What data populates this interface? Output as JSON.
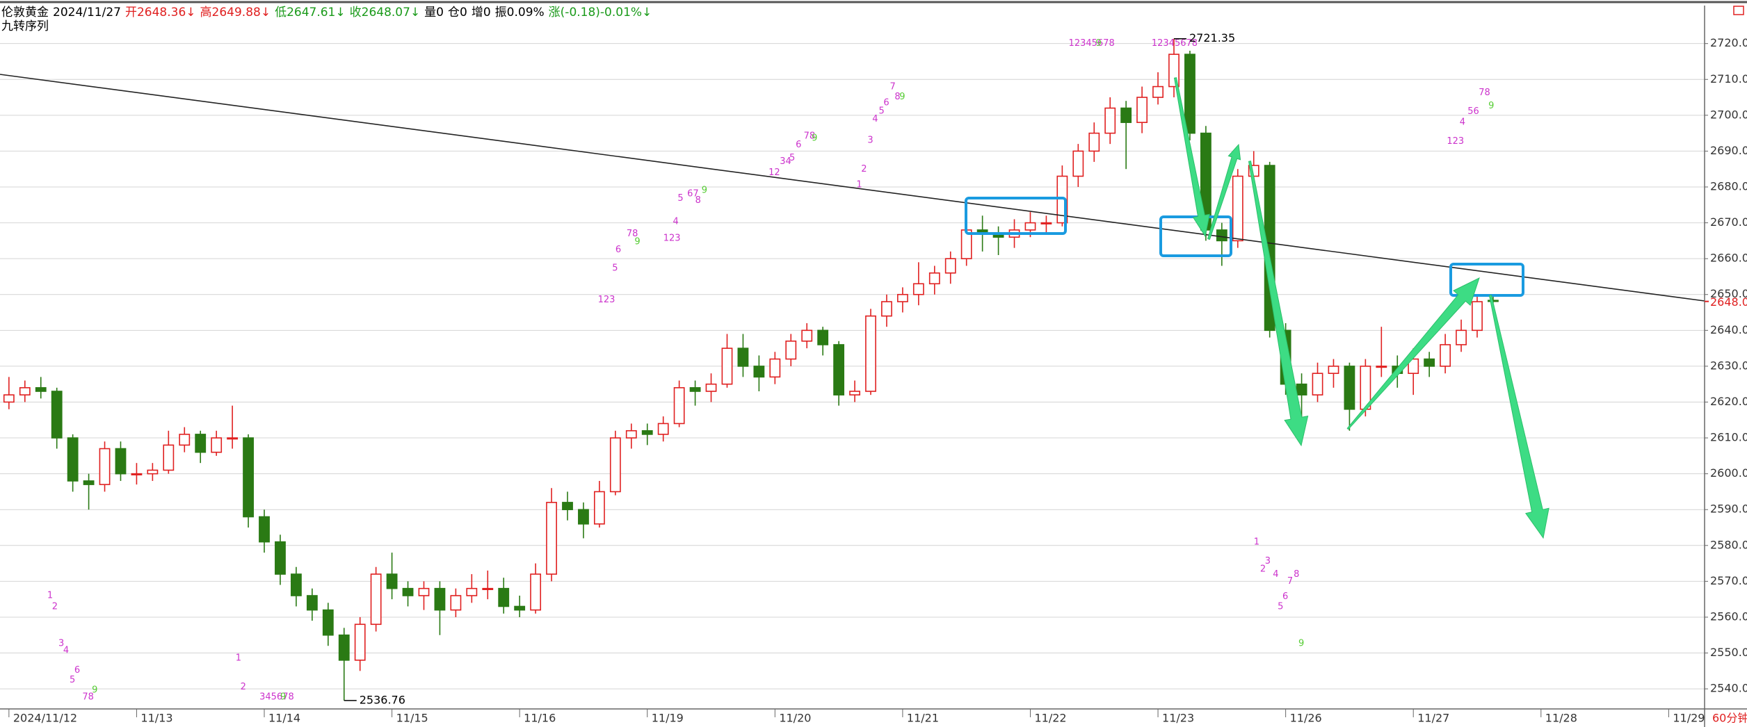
{
  "chart_data": {
    "type": "candlestick",
    "header": [
      "伦敦黄金",
      "2024/11/27",
      "开2648.36↓",
      "高2649.88↓",
      "低2647.61↓",
      "收2648.07↓",
      "量0",
      "仓0",
      "增0",
      "振0.09%",
      "涨(-0.18)-0.01%↓"
    ],
    "header_colors": [
      "#000000",
      "#000000",
      "#e02020",
      "#e02020",
      "#1a9a1a",
      "#1a9a1a",
      "#000000",
      "#000000",
      "#000000",
      "#000000",
      "#1a9a1a"
    ],
    "indicator": "九转序列",
    "period": "60分钟",
    "up_color": "#e02020",
    "down_color": "#2a7a14",
    "grid": true,
    "xlim": [
      -0.56,
      106.25
    ],
    "xticks": [
      {
        "value": 0,
        "label": "2024/11/12"
      },
      {
        "value": 8,
        "label": "11/13"
      },
      {
        "value": 16,
        "label": "11/14"
      },
      {
        "value": 24,
        "label": "11/15"
      },
      {
        "value": 32,
        "label": "11/16"
      },
      {
        "value": 40,
        "label": "11/19"
      },
      {
        "value": 48,
        "label": "11/20"
      },
      {
        "value": 56,
        "label": "11/21"
      },
      {
        "value": 64,
        "label": "11/22"
      },
      {
        "value": 72,
        "label": "11/23"
      },
      {
        "value": 80,
        "label": "11/26"
      },
      {
        "value": 88,
        "label": "11/27"
      },
      {
        "value": 96,
        "label": "11/28"
      },
      {
        "value": 104,
        "label": "11/29"
      }
    ],
    "ylim": [
      2534.4,
      2730.6
    ],
    "yticks": [
      {
        "value": 2540,
        "label": "2540.00"
      },
      {
        "value": 2550,
        "label": "2550.00"
      },
      {
        "value": 2560,
        "label": "2560.00"
      },
      {
        "value": 2570,
        "label": "2570.00"
      },
      {
        "value": 2580,
        "label": "2580.00"
      },
      {
        "value": 2590,
        "label": "2590.00"
      },
      {
        "value": 2600,
        "label": "2600.00"
      },
      {
        "value": 2610,
        "label": "2610.00"
      },
      {
        "value": 2620,
        "label": "2620.00"
      },
      {
        "value": 2630,
        "label": "2630.00"
      },
      {
        "value": 2640,
        "label": "2640.00"
      },
      {
        "value": 2650,
        "label": "2650.00"
      },
      {
        "value": 2660,
        "label": "2660.00"
      },
      {
        "value": 2670,
        "label": "2670.00"
      },
      {
        "value": 2680,
        "label": "2680.00"
      },
      {
        "value": 2690,
        "label": "2690.00"
      },
      {
        "value": 2700,
        "label": "2700.00"
      },
      {
        "value": 2710,
        "label": "2710.00"
      },
      {
        "value": 2720,
        "label": "2720.00"
      }
    ],
    "ohlc": [
      [
        2620,
        2627,
        2618,
        2622
      ],
      [
        2622,
        2626,
        2620,
        2624
      ],
      [
        2624,
        2627,
        2621,
        2623
      ],
      [
        2623,
        2624,
        2607,
        2610
      ],
      [
        2610,
        2611,
        2595,
        2598
      ],
      [
        2598,
        2600,
        2590,
        2597
      ],
      [
        2597,
        2609,
        2595,
        2607
      ],
      [
        2607,
        2609,
        2598,
        2600
      ],
      [
        2600,
        2603,
        2597,
        2600
      ],
      [
        2600,
        2603,
        2598,
        2601
      ],
      [
        2601,
        2612,
        2600,
        2608
      ],
      [
        2608,
        2613,
        2606,
        2611
      ],
      [
        2611,
        2612,
        2603,
        2606
      ],
      [
        2606,
        2612,
        2605,
        2610
      ],
      [
        2610,
        2619,
        2607,
        2610
      ],
      [
        2610,
        2611,
        2585,
        2588
      ],
      [
        2588,
        2590,
        2578,
        2581
      ],
      [
        2581,
        2583,
        2569,
        2572
      ],
      [
        2572,
        2574,
        2563,
        2566
      ],
      [
        2566,
        2568,
        2559,
        2562
      ],
      [
        2562,
        2564,
        2552,
        2555
      ],
      [
        2555,
        2557,
        2536.76,
        2548
      ],
      [
        2548,
        2560,
        2545,
        2558
      ],
      [
        2558,
        2574,
        2556,
        2572
      ],
      [
        2572,
        2578,
        2565,
        2568
      ],
      [
        2568,
        2570,
        2563,
        2566
      ],
      [
        2566,
        2570,
        2562,
        2568
      ],
      [
        2568,
        2570,
        2555,
        2562
      ],
      [
        2562,
        2568,
        2560,
        2566
      ],
      [
        2566,
        2572,
        2564,
        2568
      ],
      [
        2568,
        2573,
        2565,
        2568
      ],
      [
        2568,
        2571,
        2561,
        2563
      ],
      [
        2563,
        2566,
        2560,
        2562
      ],
      [
        2562,
        2575,
        2561,
        2572
      ],
      [
        2572,
        2596,
        2570,
        2592
      ],
      [
        2592,
        2595,
        2587,
        2590
      ],
      [
        2590,
        2592,
        2582,
        2586
      ],
      [
        2586,
        2598,
        2585,
        2595
      ],
      [
        2595,
        2612,
        2594,
        2610
      ],
      [
        2610,
        2614,
        2607,
        2612
      ],
      [
        2612,
        2614,
        2608,
        2611
      ],
      [
        2611,
        2616,
        2609,
        2614
      ],
      [
        2614,
        2626,
        2613,
        2624
      ],
      [
        2624,
        2626,
        2619,
        2623
      ],
      [
        2623,
        2628,
        2620,
        2625
      ],
      [
        2625,
        2639,
        2624,
        2635
      ],
      [
        2635,
        2639,
        2627,
        2630
      ],
      [
        2630,
        2633,
        2623,
        2627
      ],
      [
        2627,
        2634,
        2625,
        2632
      ],
      [
        2632,
        2639,
        2630,
        2637
      ],
      [
        2637,
        2642,
        2635,
        2640
      ],
      [
        2640,
        2641,
        2633,
        2636
      ],
      [
        2636,
        2637,
        2619,
        2622
      ],
      [
        2622,
        2626,
        2620,
        2623
      ],
      [
        2623,
        2646,
        2622,
        2644
      ],
      [
        2644,
        2650,
        2641,
        2648
      ],
      [
        2648,
        2652,
        2645,
        2650
      ],
      [
        2650,
        2659,
        2647,
        2653
      ],
      [
        2653,
        2658,
        2650,
        2656
      ],
      [
        2656,
        2662,
        2653,
        2660
      ],
      [
        2660,
        2670,
        2658,
        2668
      ],
      [
        2668,
        2672,
        2662,
        2667
      ],
      [
        2667,
        2669,
        2661,
        2666
      ],
      [
        2666,
        2671,
        2663,
        2668
      ],
      [
        2668,
        2673,
        2666,
        2670
      ],
      [
        2670,
        2672,
        2667,
        2670
      ],
      [
        2670,
        2686,
        2669,
        2683
      ],
      [
        2683,
        2692,
        2680,
        2690
      ],
      [
        2690,
        2698,
        2687,
        2695
      ],
      [
        2695,
        2705,
        2692,
        2702
      ],
      [
        2702,
        2704,
        2685,
        2698
      ],
      [
        2698,
        2708,
        2695,
        2705
      ],
      [
        2705,
        2712,
        2703,
        2708
      ],
      [
        2708,
        2721.35,
        2705,
        2717
      ],
      [
        2717,
        2718,
        2693,
        2695
      ],
      [
        2695,
        2697,
        2665,
        2668
      ],
      [
        2668,
        2670,
        2658,
        2665
      ],
      [
        2665,
        2685,
        2663,
        2683
      ],
      [
        2683,
        2690,
        2680,
        2686
      ],
      [
        2686,
        2687,
        2638,
        2640
      ],
      [
        2640,
        2642,
        2622,
        2625
      ],
      [
        2625,
        2628,
        2615,
        2622
      ],
      [
        2622,
        2631,
        2620,
        2628
      ],
      [
        2628,
        2632,
        2624,
        2630
      ],
      [
        2630,
        2631,
        2612,
        2618
      ],
      [
        2618,
        2632,
        2616,
        2630
      ],
      [
        2630,
        2641,
        2627,
        2630
      ],
      [
        2630,
        2633,
        2624,
        2628
      ],
      [
        2628,
        2635,
        2622,
        2632
      ],
      [
        2632,
        2634,
        2627,
        2630
      ],
      [
        2630,
        2639,
        2628,
        2636
      ],
      [
        2636,
        2643,
        2634,
        2640
      ],
      [
        2640,
        2650,
        2638,
        2648
      ],
      [
        2648.36,
        2649.88,
        2647.61,
        2648.07
      ]
    ],
    "td_sequence": [
      {
        "color": "#cc33cc",
        "labels": [
          "1",
          "2",
          "3",
          "4",
          "5",
          "6",
          "78",
          "1",
          "2",
          "345678",
          "123",
          "5",
          "6",
          "78",
          "123",
          "4",
          "5",
          "67",
          "8",
          "12",
          "34",
          "5",
          "6",
          "78",
          "1",
          "2",
          "3",
          "4",
          "5",
          "6",
          "7",
          "8",
          "12345678",
          "12345678",
          "123",
          "4",
          "56",
          "78",
          "1",
          "2",
          "3",
          "4",
          "5",
          "6",
          "7",
          "8"
        ],
        "x": [
          2.4,
          2.7,
          3.1,
          3.4,
          3.8,
          4.1,
          4.6,
          14.2,
          14.5,
          15.7,
          36.9,
          37.8,
          38.0,
          38.7,
          41.0,
          41.6,
          41.9,
          42.5,
          43.0,
          47.6,
          48.3,
          48.9,
          49.3,
          49.8,
          53.1,
          53.4,
          53.8,
          54.1,
          54.5,
          54.8,
          55.2,
          55.5,
          66.4,
          71.6,
          90.1,
          90.9,
          91.4,
          92.1,
          78.0,
          78.4,
          78.7,
          79.2,
          79.5,
          79.8,
          80.1,
          80.5
        ],
        "y": [
          2566.0,
          2562.9,
          2552.6,
          2550.7,
          2542.4,
          2545.2,
          2537.7,
          2548.6,
          2540.5,
          2537.7,
          2648.5,
          2657.3,
          2662.5,
          2666.9,
          2665.7,
          2670.3,
          2676.8,
          2678.1,
          2676.2,
          2684.0,
          2687.1,
          2688.0,
          2691.7,
          2694.2,
          2680.6,
          2684.9,
          2693.0,
          2698.9,
          2701.1,
          2703.5,
          2707.9,
          2705.1,
          2720,
          2720,
          2692.7,
          2698,
          2701,
          2706.3,
          2580.9,
          2573.4,
          2575.6,
          2571.9,
          2562.9,
          2565.7,
          2570,
          2571.9
        ]
      },
      {
        "color": "#55cc33",
        "labels": [
          "9",
          "9",
          "9",
          "9",
          "9",
          "9",
          "9",
          "9",
          "9"
        ],
        "x": [
          5.2,
          17.0,
          39.2,
          43.4,
          50.3,
          55.8,
          68.1,
          92.7,
          80.8
        ],
        "y": [
          2539.6,
          2537.7,
          2664.7,
          2679.0,
          2693.6,
          2705.1,
          2720,
          2702.6,
          2552.6
        ]
      }
    ]
  }
}
